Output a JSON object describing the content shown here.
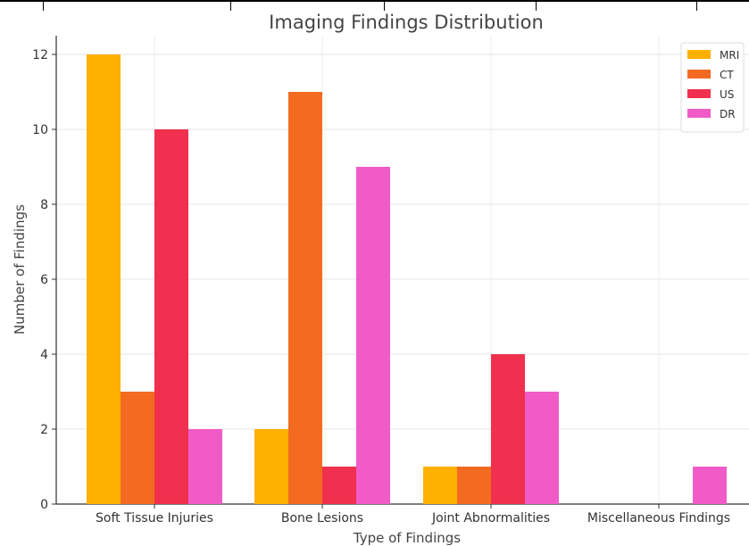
{
  "chart_data": {
    "type": "bar",
    "title": "Imaging Findings Distribution",
    "xlabel": "Type of Findings",
    "ylabel": "Number of Findings",
    "categories": [
      "Soft Tissue Injuries",
      "Bone Lesions",
      "Joint Abnormalities",
      "Miscellaneous Findings"
    ],
    "series": [
      {
        "name": "MRI",
        "color": "#FFB000",
        "values": [
          12,
          2,
          1,
          0
        ]
      },
      {
        "name": "CT",
        "color": "#F26B21",
        "values": [
          3,
          11,
          1,
          0
        ]
      },
      {
        "name": "US",
        "color": "#F0304E",
        "values": [
          10,
          1,
          4,
          0
        ]
      },
      {
        "name": "DR",
        "color": "#F05BC8",
        "values": [
          2,
          9,
          3,
          1
        ]
      }
    ],
    "ylim": [
      0,
      12.5
    ],
    "yticks": [
      0,
      2,
      4,
      6,
      8,
      10,
      12
    ],
    "grid": true,
    "legend_position": "top-right"
  }
}
